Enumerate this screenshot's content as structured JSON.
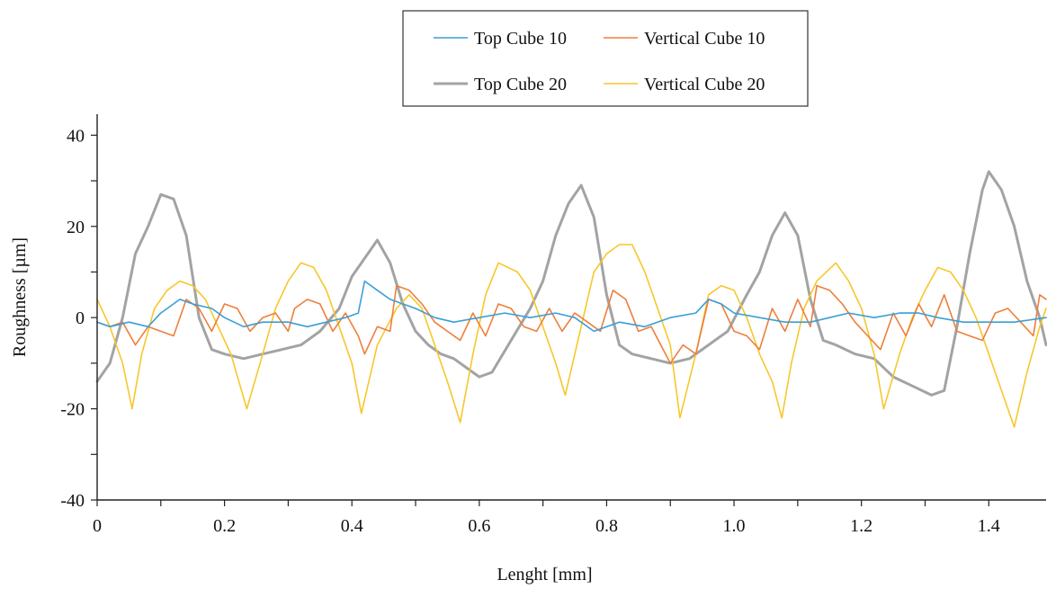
{
  "chart_data": {
    "type": "line",
    "xlabel": "Lenght [mm]",
    "ylabel": "Roughness [µm]",
    "xlim": [
      0,
      1.49
    ],
    "ylim": [
      -40,
      45
    ],
    "xticks": [
      0,
      0.2,
      0.4,
      0.6,
      0.8,
      1.0,
      1.2,
      1.4
    ],
    "xtick_labels": [
      "0",
      "0.2",
      "0.4",
      "0.6",
      "0.8",
      "1.0",
      "1.2",
      "1.4"
    ],
    "yticks": [
      -40,
      -20,
      0,
      20,
      40
    ],
    "ytick_labels": [
      "-40",
      "-20",
      "0",
      "20",
      "40"
    ],
    "grid": false,
    "legend_position": "top-center",
    "series": [
      {
        "name": "Top Cube 10",
        "color": "#3a9fd6",
        "stroke_width": 1.6,
        "points": [
          [
            0,
            -1
          ],
          [
            0.02,
            -2
          ],
          [
            0.05,
            -1
          ],
          [
            0.08,
            -2
          ],
          [
            0.1,
            1
          ],
          [
            0.13,
            4
          ],
          [
            0.15,
            3
          ],
          [
            0.18,
            2
          ],
          [
            0.2,
            0
          ],
          [
            0.23,
            -2
          ],
          [
            0.26,
            -1
          ],
          [
            0.3,
            -1
          ],
          [
            0.33,
            -2
          ],
          [
            0.36,
            -1
          ],
          [
            0.39,
            0
          ],
          [
            0.41,
            1
          ],
          [
            0.42,
            8
          ],
          [
            0.44,
            6
          ],
          [
            0.46,
            4
          ],
          [
            0.48,
            3
          ],
          [
            0.5,
            2
          ],
          [
            0.53,
            0
          ],
          [
            0.56,
            -1
          ],
          [
            0.6,
            0
          ],
          [
            0.64,
            1
          ],
          [
            0.68,
            0
          ],
          [
            0.72,
            1
          ],
          [
            0.75,
            0
          ],
          [
            0.78,
            -3
          ],
          [
            0.82,
            -1
          ],
          [
            0.86,
            -2
          ],
          [
            0.9,
            0
          ],
          [
            0.94,
            1
          ],
          [
            0.96,
            4
          ],
          [
            0.98,
            3
          ],
          [
            1.0,
            1
          ],
          [
            1.04,
            0
          ],
          [
            1.08,
            -1
          ],
          [
            1.12,
            -1
          ],
          [
            1.15,
            0
          ],
          [
            1.18,
            1
          ],
          [
            1.22,
            0
          ],
          [
            1.26,
            1
          ],
          [
            1.29,
            1
          ],
          [
            1.32,
            0
          ],
          [
            1.36,
            -1
          ],
          [
            1.4,
            -1
          ],
          [
            1.44,
            -1
          ],
          [
            1.49,
            0
          ]
        ]
      },
      {
        "name": "Vertical Cube 10",
        "color": "#ee7f3b",
        "stroke_width": 1.6,
        "points": [
          [
            0,
            -1
          ],
          [
            0.02,
            -2
          ],
          [
            0.04,
            -1
          ],
          [
            0.06,
            -6
          ],
          [
            0.08,
            -2
          ],
          [
            0.1,
            -3
          ],
          [
            0.12,
            -4
          ],
          [
            0.14,
            4
          ],
          [
            0.16,
            2
          ],
          [
            0.18,
            -3
          ],
          [
            0.2,
            3
          ],
          [
            0.22,
            2
          ],
          [
            0.24,
            -3
          ],
          [
            0.26,
            0
          ],
          [
            0.28,
            1
          ],
          [
            0.3,
            -3
          ],
          [
            0.31,
            2
          ],
          [
            0.33,
            4
          ],
          [
            0.35,
            3
          ],
          [
            0.37,
            -3
          ],
          [
            0.39,
            1
          ],
          [
            0.41,
            -4
          ],
          [
            0.42,
            -8
          ],
          [
            0.44,
            -2
          ],
          [
            0.46,
            -3
          ],
          [
            0.47,
            7
          ],
          [
            0.49,
            6
          ],
          [
            0.51,
            3
          ],
          [
            0.53,
            -1
          ],
          [
            0.55,
            -3
          ],
          [
            0.57,
            -5
          ],
          [
            0.59,
            1
          ],
          [
            0.61,
            -4
          ],
          [
            0.63,
            3
          ],
          [
            0.65,
            2
          ],
          [
            0.67,
            -2
          ],
          [
            0.69,
            -3
          ],
          [
            0.71,
            2
          ],
          [
            0.73,
            -3
          ],
          [
            0.75,
            1
          ],
          [
            0.77,
            -1
          ],
          [
            0.79,
            -3
          ],
          [
            0.81,
            6
          ],
          [
            0.83,
            4
          ],
          [
            0.85,
            -3
          ],
          [
            0.87,
            -2
          ],
          [
            0.9,
            -10
          ],
          [
            0.92,
            -6
          ],
          [
            0.94,
            -8
          ],
          [
            0.96,
            4
          ],
          [
            0.98,
            3
          ],
          [
            1.0,
            -3
          ],
          [
            1.02,
            -4
          ],
          [
            1.04,
            -7
          ],
          [
            1.06,
            2
          ],
          [
            1.08,
            -3
          ],
          [
            1.1,
            4
          ],
          [
            1.12,
            -2
          ],
          [
            1.13,
            7
          ],
          [
            1.15,
            6
          ],
          [
            1.17,
            3
          ],
          [
            1.19,
            -1
          ],
          [
            1.21,
            -4
          ],
          [
            1.23,
            -7
          ],
          [
            1.25,
            1
          ],
          [
            1.27,
            -4
          ],
          [
            1.29,
            3
          ],
          [
            1.31,
            -2
          ],
          [
            1.33,
            5
          ],
          [
            1.35,
            -3
          ],
          [
            1.37,
            -4
          ],
          [
            1.39,
            -5
          ],
          [
            1.41,
            1
          ],
          [
            1.43,
            2
          ],
          [
            1.45,
            -1
          ],
          [
            1.47,
            -4
          ],
          [
            1.48,
            5
          ],
          [
            1.49,
            4
          ]
        ]
      },
      {
        "name": "Top Cube 20",
        "color": "#a3a3a3",
        "stroke_width": 3,
        "points": [
          [
            0,
            -14
          ],
          [
            0.02,
            -10
          ],
          [
            0.04,
            0
          ],
          [
            0.06,
            14
          ],
          [
            0.08,
            20
          ],
          [
            0.1,
            27
          ],
          [
            0.12,
            26
          ],
          [
            0.14,
            18
          ],
          [
            0.16,
            0
          ],
          [
            0.18,
            -7
          ],
          [
            0.2,
            -8
          ],
          [
            0.23,
            -9
          ],
          [
            0.26,
            -8
          ],
          [
            0.29,
            -7
          ],
          [
            0.32,
            -6
          ],
          [
            0.35,
            -3
          ],
          [
            0.38,
            2
          ],
          [
            0.4,
            9
          ],
          [
            0.42,
            13
          ],
          [
            0.44,
            17
          ],
          [
            0.46,
            12
          ],
          [
            0.48,
            3
          ],
          [
            0.5,
            -3
          ],
          [
            0.52,
            -6
          ],
          [
            0.54,
            -8
          ],
          [
            0.56,
            -9
          ],
          [
            0.58,
            -11
          ],
          [
            0.6,
            -13
          ],
          [
            0.62,
            -12
          ],
          [
            0.65,
            -5
          ],
          [
            0.68,
            2
          ],
          [
            0.7,
            8
          ],
          [
            0.72,
            18
          ],
          [
            0.74,
            25
          ],
          [
            0.76,
            29
          ],
          [
            0.78,
            22
          ],
          [
            0.8,
            5
          ],
          [
            0.82,
            -6
          ],
          [
            0.84,
            -8
          ],
          [
            0.87,
            -9
          ],
          [
            0.9,
            -10
          ],
          [
            0.93,
            -9
          ],
          [
            0.96,
            -6
          ],
          [
            0.99,
            -3
          ],
          [
            1.02,
            5
          ],
          [
            1.04,
            10
          ],
          [
            1.06,
            18
          ],
          [
            1.08,
            23
          ],
          [
            1.1,
            18
          ],
          [
            1.12,
            4
          ],
          [
            1.14,
            -5
          ],
          [
            1.16,
            -6
          ],
          [
            1.19,
            -8
          ],
          [
            1.22,
            -9
          ],
          [
            1.25,
            -13
          ],
          [
            1.28,
            -15
          ],
          [
            1.31,
            -17
          ],
          [
            1.33,
            -16
          ],
          [
            1.35,
            -2
          ],
          [
            1.37,
            14
          ],
          [
            1.39,
            28
          ],
          [
            1.4,
            32
          ],
          [
            1.42,
            28
          ],
          [
            1.44,
            20
          ],
          [
            1.46,
            8
          ],
          [
            1.48,
            0
          ],
          [
            1.49,
            -6
          ]
        ]
      },
      {
        "name": "Vertical Cube 20",
        "color": "#f7c72c",
        "stroke_width": 1.6,
        "points": [
          [
            0,
            4
          ],
          [
            0.02,
            -2
          ],
          [
            0.04,
            -10
          ],
          [
            0.055,
            -20
          ],
          [
            0.07,
            -8
          ],
          [
            0.09,
            2
          ],
          [
            0.11,
            6
          ],
          [
            0.13,
            8
          ],
          [
            0.15,
            7
          ],
          [
            0.17,
            4
          ],
          [
            0.19,
            -2
          ],
          [
            0.21,
            -8
          ],
          [
            0.235,
            -20
          ],
          [
            0.26,
            -8
          ],
          [
            0.28,
            2
          ],
          [
            0.3,
            8
          ],
          [
            0.32,
            12
          ],
          [
            0.34,
            11
          ],
          [
            0.36,
            6
          ],
          [
            0.38,
            -2
          ],
          [
            0.4,
            -10
          ],
          [
            0.415,
            -21
          ],
          [
            0.44,
            -6
          ],
          [
            0.47,
            2
          ],
          [
            0.49,
            5
          ],
          [
            0.51,
            2
          ],
          [
            0.53,
            -6
          ],
          [
            0.55,
            -14
          ],
          [
            0.57,
            -23
          ],
          [
            0.59,
            -8
          ],
          [
            0.61,
            5
          ],
          [
            0.63,
            12
          ],
          [
            0.66,
            10
          ],
          [
            0.68,
            6
          ],
          [
            0.7,
            -2
          ],
          [
            0.72,
            -10
          ],
          [
            0.735,
            -17
          ],
          [
            0.76,
            -2
          ],
          [
            0.78,
            10
          ],
          [
            0.8,
            14
          ],
          [
            0.82,
            16
          ],
          [
            0.84,
            16
          ],
          [
            0.86,
            10
          ],
          [
            0.88,
            2
          ],
          [
            0.9,
            -6
          ],
          [
            0.915,
            -22
          ],
          [
            0.94,
            -8
          ],
          [
            0.96,
            5
          ],
          [
            0.98,
            7
          ],
          [
            1.0,
            6
          ],
          [
            1.02,
            0
          ],
          [
            1.04,
            -8
          ],
          [
            1.06,
            -14
          ],
          [
            1.075,
            -22
          ],
          [
            1.09,
            -10
          ],
          [
            1.11,
            2
          ],
          [
            1.13,
            8
          ],
          [
            1.16,
            12
          ],
          [
            1.18,
            8
          ],
          [
            1.2,
            2
          ],
          [
            1.22,
            -8
          ],
          [
            1.235,
            -20
          ],
          [
            1.26,
            -8
          ],
          [
            1.28,
            0
          ],
          [
            1.3,
            6
          ],
          [
            1.32,
            11
          ],
          [
            1.34,
            10
          ],
          [
            1.36,
            6
          ],
          [
            1.38,
            0
          ],
          [
            1.4,
            -8
          ],
          [
            1.42,
            -16
          ],
          [
            1.44,
            -24
          ],
          [
            1.46,
            -12
          ],
          [
            1.48,
            -2
          ],
          [
            1.49,
            2
          ]
        ]
      }
    ]
  }
}
